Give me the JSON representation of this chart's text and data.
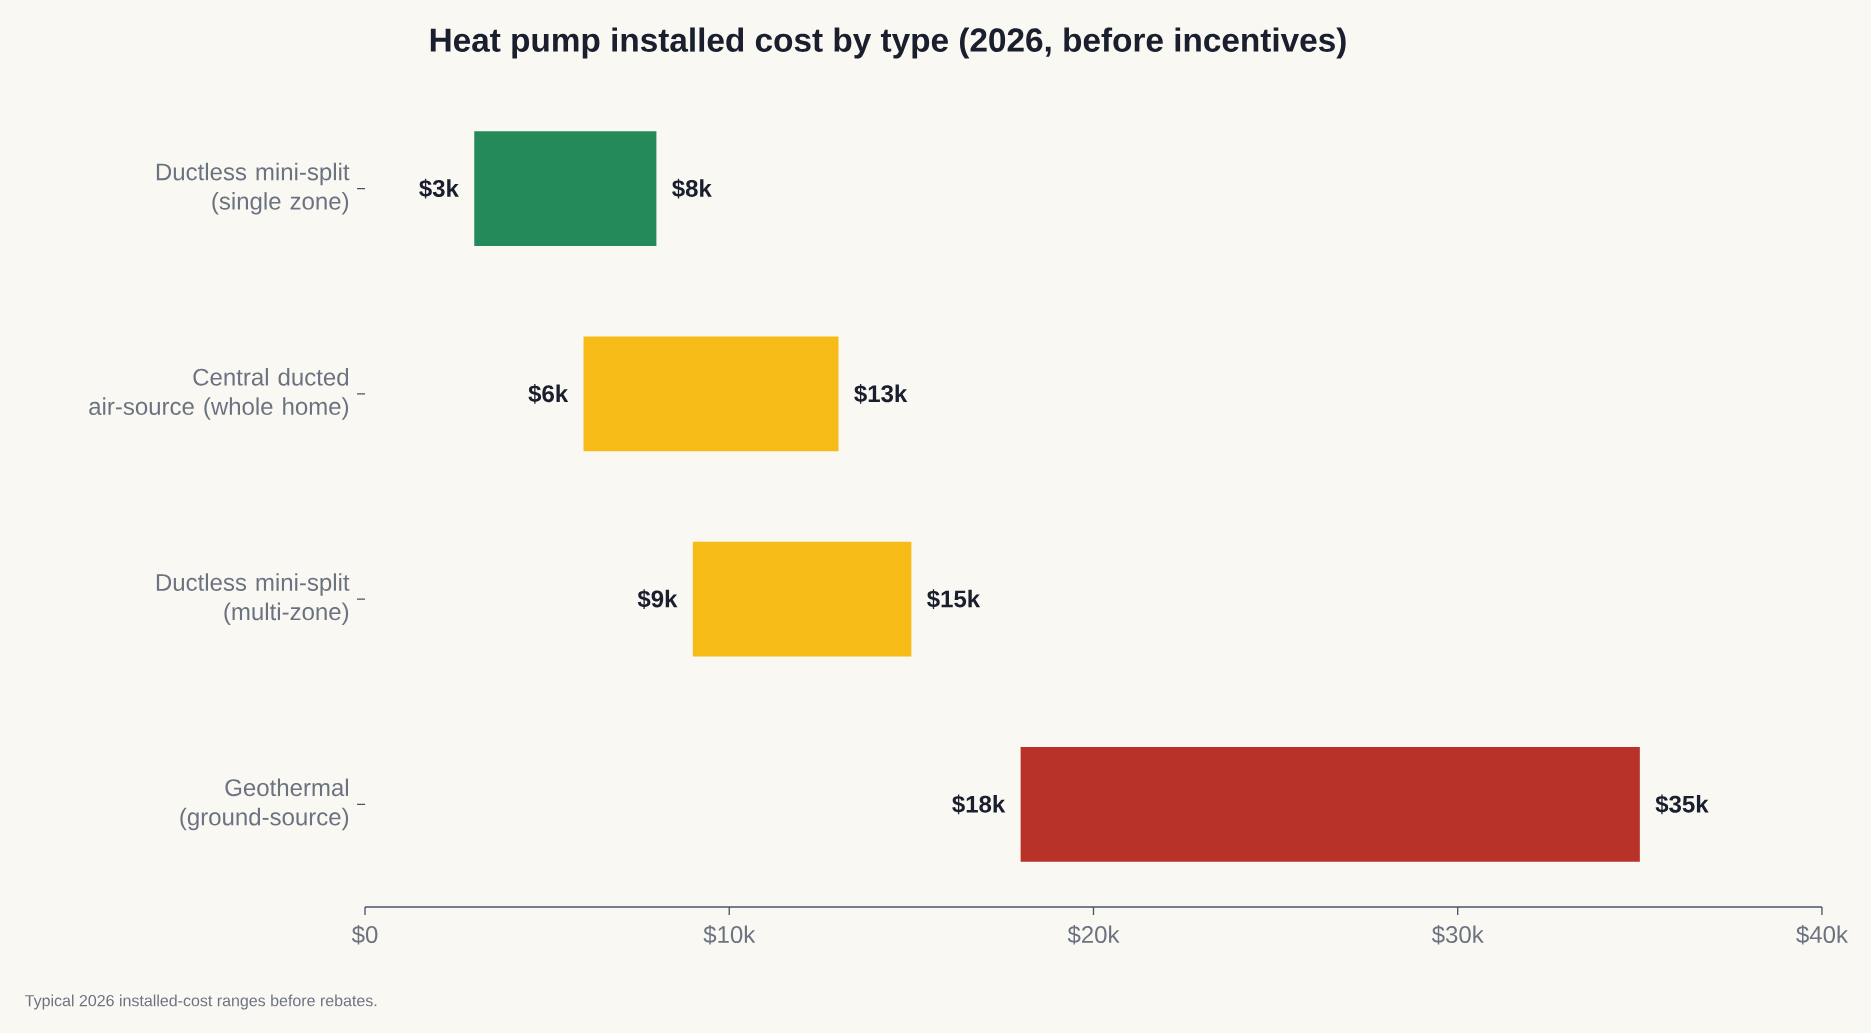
{
  "chart_data": {
    "type": "bar",
    "orientation": "horizontal",
    "title": "Heat pump installed cost by type (2026, before incentives)",
    "categories": [
      "Ductless mini-split (single zone)",
      "Central ducted air-source (whole home)",
      "Ductless mini-split (multi-zone)",
      "Geothermal (ground-source)"
    ],
    "base": [
      3000,
      6000,
      9000,
      18000
    ],
    "values": [
      5000,
      7000,
      6000,
      17000
    ],
    "colors": [
      "#248a5a",
      "#f6bb16",
      "#f6bb16",
      "#b8322a"
    ],
    "xlim": [
      0,
      40000
    ],
    "xticks": [
      {
        "value": 0,
        "label": "$0"
      },
      {
        "value": 10000,
        "label": "$10k"
      },
      {
        "value": 20000,
        "label": "$20k"
      },
      {
        "value": 30000,
        "label": "$30k"
      },
      {
        "value": 40000,
        "label": "$40k"
      }
    ],
    "grid": false,
    "annotations": [
      {
        "text": "$3k",
        "x": 3000,
        "y": "Ductless mini-split (single zone)"
      },
      {
        "text": "$8k",
        "x": 8000,
        "y": "Ductless mini-split (single zone)"
      },
      {
        "text": "$6k",
        "x": 6000,
        "y": "Central ducted air-source (whole home)"
      },
      {
        "text": "$13k",
        "x": 13000,
        "y": "Central ducted air-source (whole home)"
      },
      {
        "text": "$9k",
        "x": 9000,
        "y": "Ductless mini-split (multi-zone)"
      },
      {
        "text": "$15k",
        "x": 15000,
        "y": "Ductless mini-split (multi-zone)"
      },
      {
        "text": "$18k",
        "x": 18000,
        "y": "Geothermal (ground-source)"
      },
      {
        "text": "$35k",
        "x": 35000,
        "y": "Geothermal (ground-source)"
      },
      "Typical 2026 installed-cost ranges before rebates."
    ]
  }
}
